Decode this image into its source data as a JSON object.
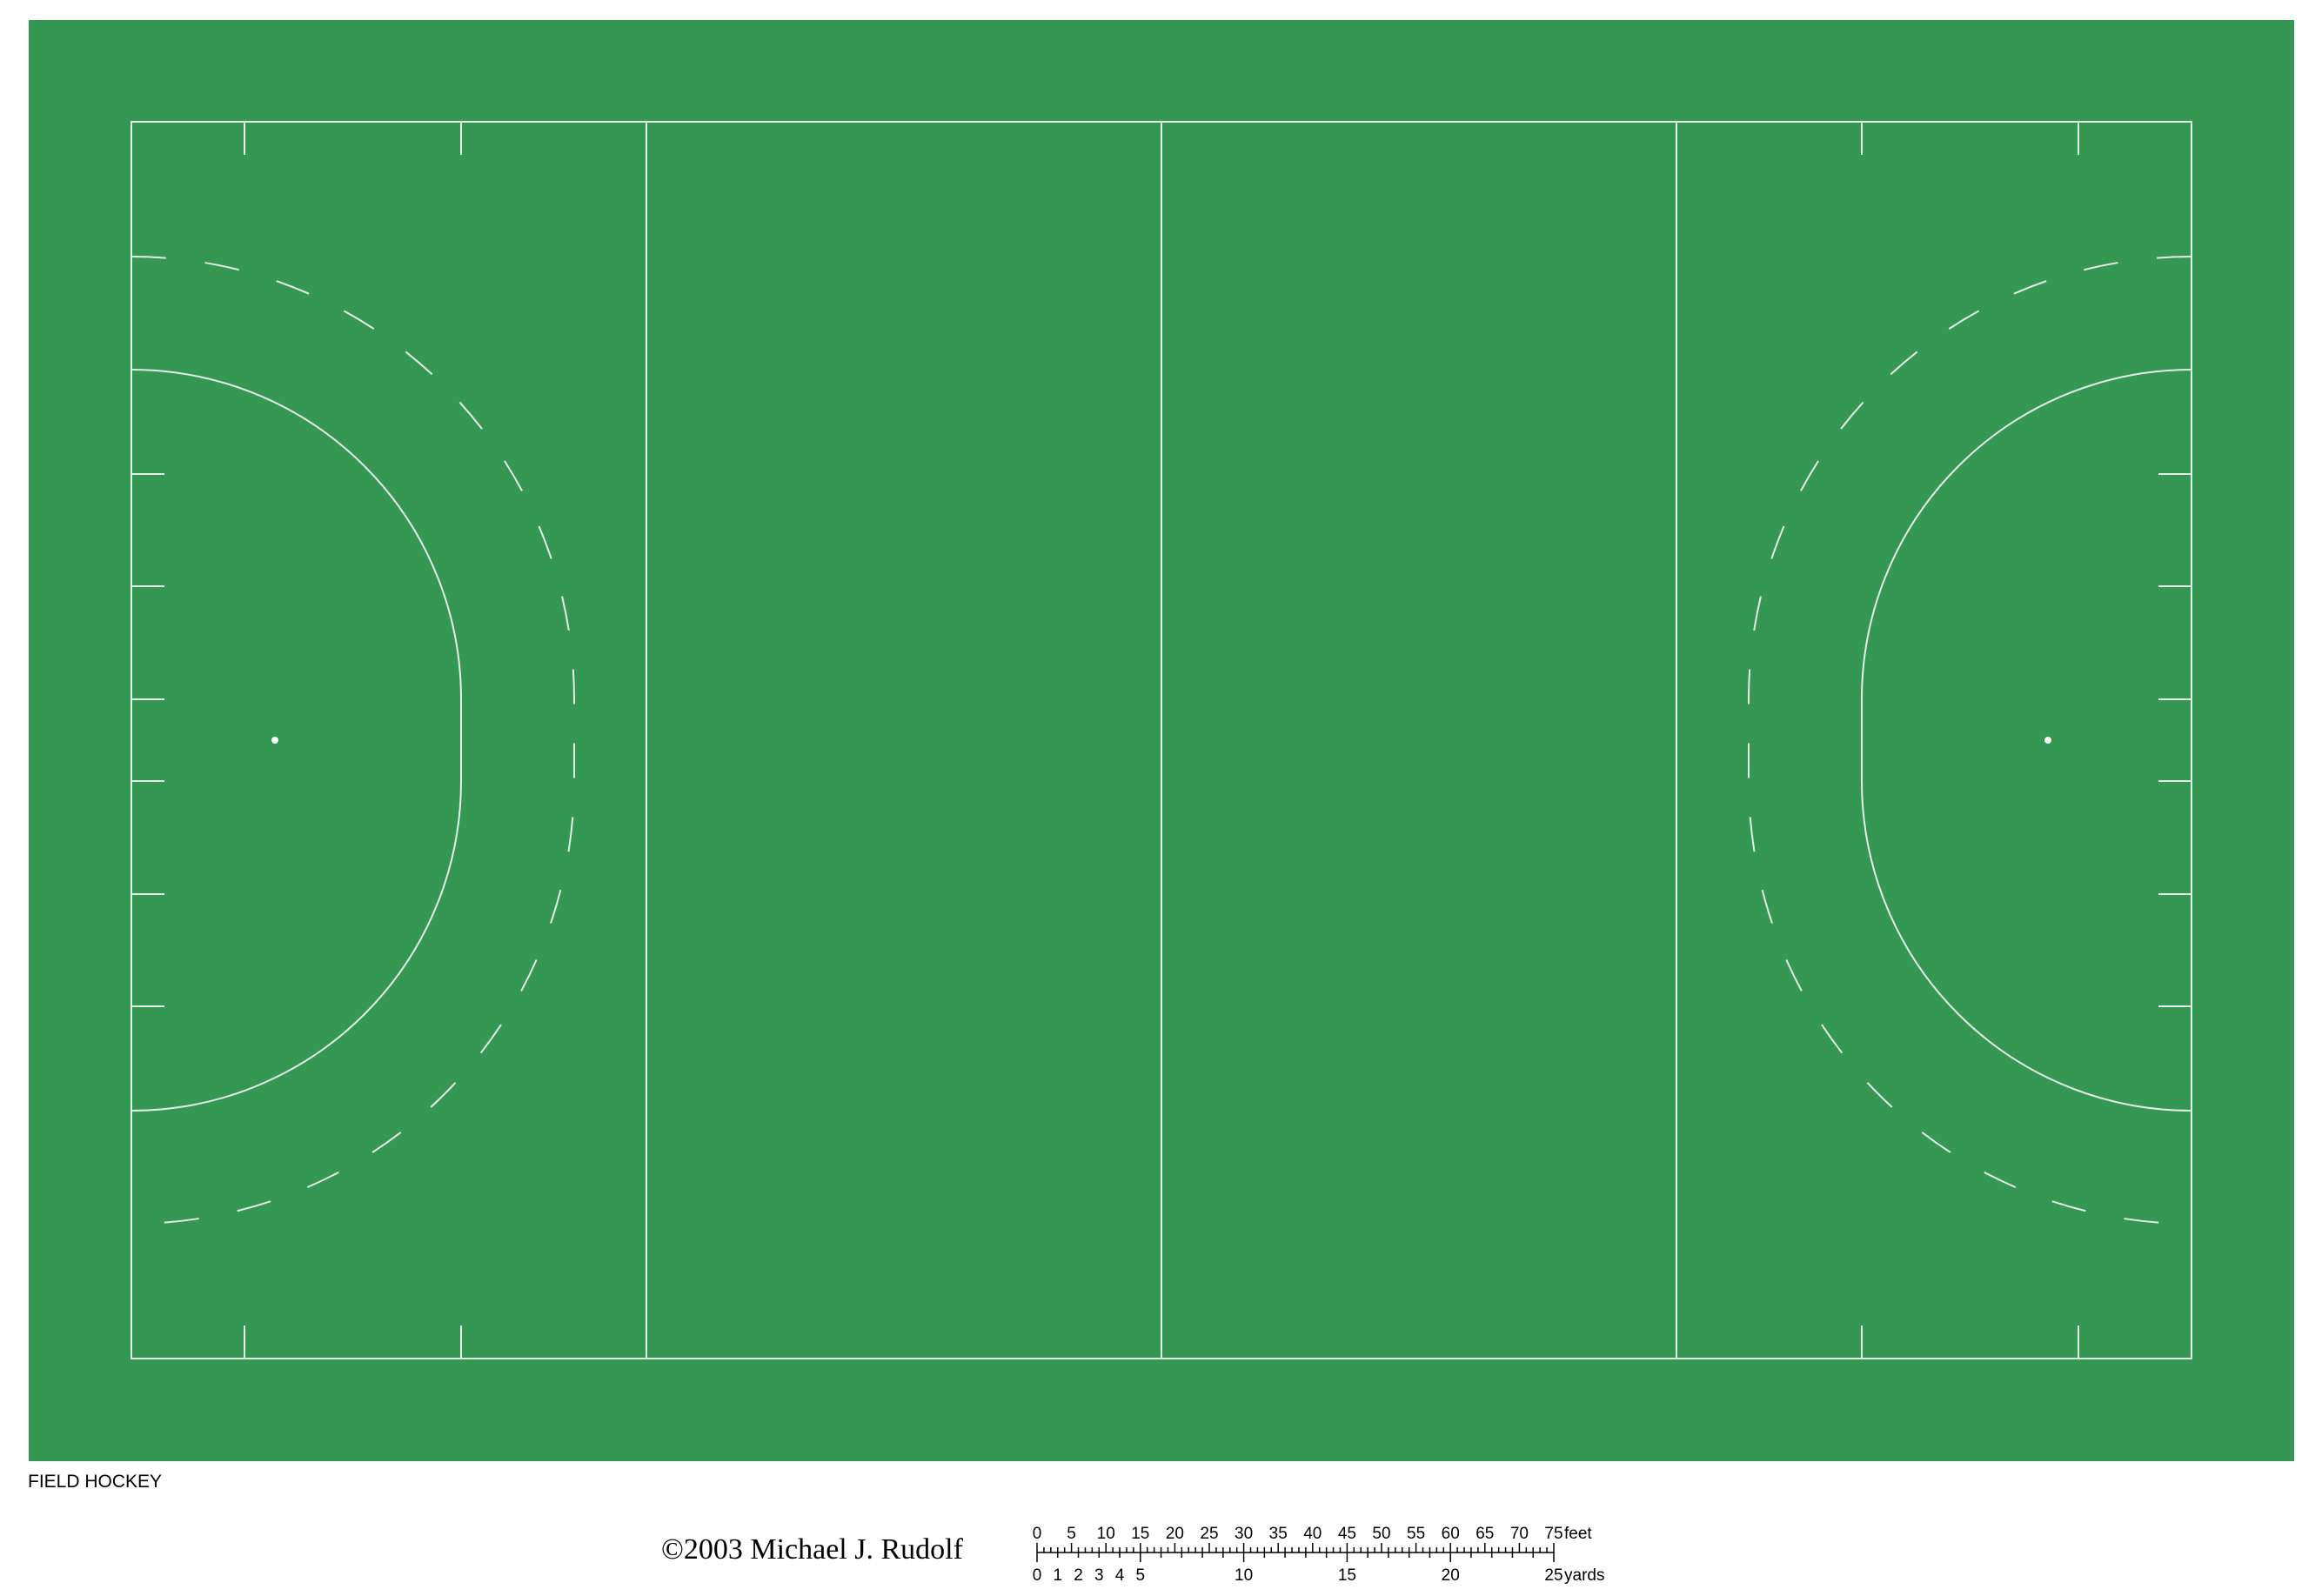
{
  "title": "FIELD HOCKEY",
  "copyright": "©2003 Michael J. Rudolf",
  "colors": {
    "surround": "#349853",
    "field": "#349853",
    "lines": "#e6efe8",
    "page": "#ffffff",
    "text": "#000000"
  },
  "scale_bar": {
    "feet_unit": "feet",
    "yards_unit": "yards",
    "feet_labels": [
      "0",
      "5",
      "10",
      "15",
      "20",
      "25",
      "30",
      "35",
      "40",
      "45",
      "50",
      "55",
      "60",
      "65",
      "70",
      "75"
    ],
    "yards_labels_fine": [
      "0",
      "1",
      "2",
      "3",
      "4",
      "5"
    ],
    "yards_labels_coarse": [
      "10",
      "15",
      "20",
      "25"
    ]
  }
}
